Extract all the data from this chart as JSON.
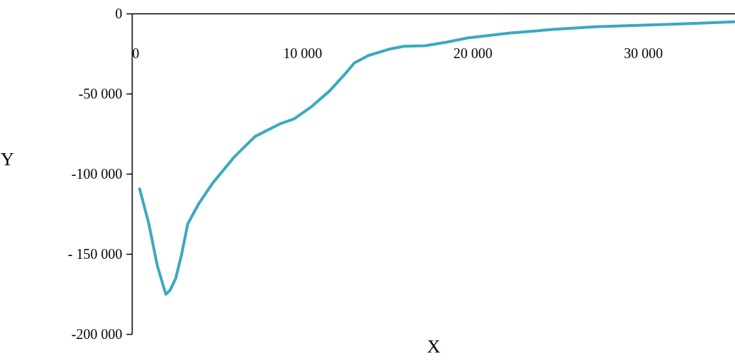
{
  "chart_data": {
    "type": "line",
    "xlabel": "X",
    "ylabel": "Y",
    "x": [
      457,
      998,
      1497,
      1996,
      2245,
      2578,
      2911,
      3285,
      3909,
      4740,
      5988,
      7235,
      8690,
      9522,
      10561,
      11601,
      12640,
      13056,
      13888,
      15135,
      15967,
      17214,
      18462,
      19709,
      22204,
      24699,
      27193,
      29688,
      32183,
      35385
    ],
    "series": [
      {
        "color": "#3aa9c1",
        "values": [
          -109400,
          -131200,
          -157400,
          -175200,
          -172600,
          -165200,
          -150800,
          -131200,
          -119000,
          -105900,
          -89800,
          -76700,
          -68900,
          -65800,
          -58000,
          -48400,
          -36200,
          -30900,
          -26200,
          -22200,
          -20500,
          -20100,
          -17900,
          -15300,
          -12200,
          -10000,
          -8300,
          -7400,
          -6500,
          -5200
        ]
      }
    ],
    "xlim": [
      0,
      35400
    ],
    "ylim": [
      -200000,
      0
    ],
    "xticks": [
      0,
      {
        "value": 10000,
        "label": "10 000"
      },
      {
        "value": 20000,
        "label": "20 000"
      },
      {
        "value": 30000,
        "label": "30 000"
      }
    ],
    "yticks": [
      {
        "value": -200000,
        "label": "-200 000"
      },
      {
        "value": -150000,
        "label": "- 150 000"
      },
      {
        "value": -100000,
        "label": "-100 000"
      },
      {
        "value": -50000,
        "label": "-50 000"
      },
      0
    ],
    "grid": false,
    "marker": "none",
    "line_style": "solid"
  }
}
